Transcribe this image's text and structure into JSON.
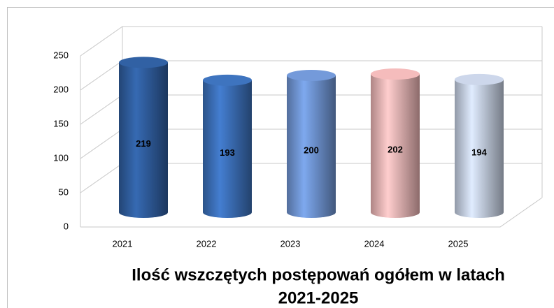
{
  "chart_data": {
    "type": "bar3d",
    "title": [
      "Ilość wszczętych postępowań ogółem w latach",
      "2021-2025"
    ],
    "categories": [
      "2021",
      "2022",
      "2023",
      "2024",
      "2025"
    ],
    "values": [
      219,
      193,
      200,
      202,
      194
    ],
    "colors": [
      "#2f5c9c",
      "#3b6eb6",
      "#6e93d0",
      "#e9b3b3",
      "#c3cde0"
    ],
    "ylim": [
      0,
      250
    ],
    "yticks": [
      0,
      50,
      100,
      150,
      200,
      250
    ],
    "grid": true
  }
}
